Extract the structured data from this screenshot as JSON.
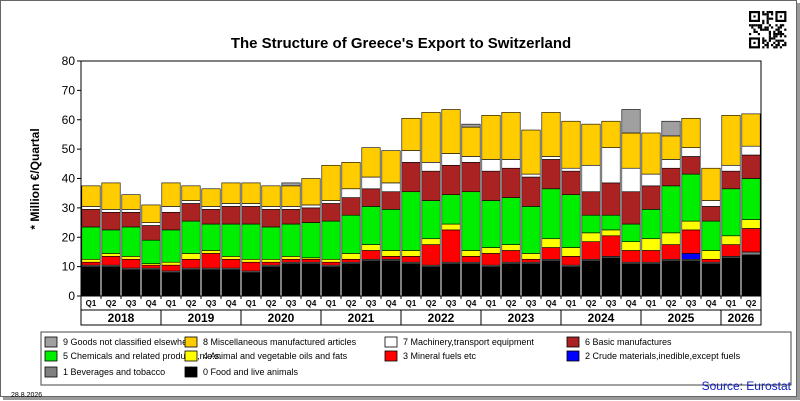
{
  "chart_data": {
    "type": "bar",
    "stacked": true,
    "title": "The Structure of Greece's Export to Switzerland",
    "ylabel": "* Million €/Quartal",
    "ylim": [
      0,
      80
    ],
    "yticks": [
      0,
      10,
      20,
      30,
      40,
      50,
      60,
      70,
      80
    ],
    "grid": false,
    "legend_position": "bottom",
    "quarter_labels": [
      "Q1",
      "Q2",
      "Q3",
      "Q4",
      "Q1",
      "Q2",
      "Q3",
      "Q4",
      "Q1",
      "Q2",
      "Q3",
      "Q4",
      "Q1",
      "Q2",
      "Q3",
      "Q4",
      "Q1",
      "Q2",
      "Q3",
      "Q4",
      "Q1",
      "Q2",
      "Q3",
      "Q4",
      "Q1",
      "Q2",
      "Q3",
      "Q4",
      "Q1",
      "Q2",
      "Q3",
      "Q4",
      "Q1",
      "Q2"
    ],
    "years": [
      "2018",
      "2019",
      "2020",
      "2021",
      "2022",
      "2023",
      "2024",
      "2025",
      "2026"
    ],
    "categories": [
      "2018 Q1",
      "2018 Q2",
      "2018 Q3",
      "2018 Q4",
      "2019 Q1",
      "2019 Q2",
      "2019 Q3",
      "2019 Q4",
      "2020 Q1",
      "2020 Q2",
      "2020 Q3",
      "2020 Q4",
      "2021 Q1",
      "2021 Q2",
      "2021 Q3",
      "2021 Q4",
      "2022 Q1",
      "2022 Q2",
      "2022 Q3",
      "2022 Q4",
      "2023 Q1",
      "2023 Q2",
      "2023 Q3",
      "2023 Q4",
      "2024 Q1",
      "2024 Q2",
      "2024 Q3",
      "2024 Q4",
      "2025 Q1",
      "2025 Q2",
      "2025 Q3",
      "2025 Q4",
      "2026 Q1",
      "2026 Q2"
    ],
    "series": [
      {
        "name": "0 Food and live animals",
        "code": "0",
        "color": "#000000",
        "values": [
          10,
          10,
          9,
          9,
          8,
          9,
          9,
          9,
          8,
          10,
          11,
          11,
          10,
          11,
          12,
          12,
          11,
          10,
          11,
          11,
          10,
          11,
          11,
          12,
          10,
          12,
          13,
          11,
          11,
          12,
          12,
          11,
          13,
          14
        ]
      },
      {
        "name": "1 Beverages and tobacco",
        "code": "1",
        "color": "#808080",
        "values": [
          0.5,
          0.5,
          0.5,
          0.5,
          0.5,
          0.5,
          0.5,
          0.5,
          0.5,
          0.5,
          0.5,
          0.5,
          0.5,
          0.5,
          0.5,
          0.5,
          0.5,
          0.5,
          0.5,
          0.5,
          0.5,
          0.5,
          0.5,
          0.5,
          0.5,
          0.5,
          0.5,
          0.5,
          0.5,
          0.5,
          0.5,
          0.5,
          0.5,
          1
        ]
      },
      {
        "name": "2 Crude materials,inedible,except fuels",
        "code": "2",
        "color": "#0000ff",
        "values": [
          0,
          0,
          0,
          0,
          0,
          0,
          0,
          0,
          0,
          0,
          0,
          0,
          0,
          0,
          0,
          0,
          0,
          0,
          0,
          0,
          0,
          0,
          0,
          0,
          0,
          0,
          0,
          0,
          0,
          0,
          2,
          0,
          0,
          0
        ]
      },
      {
        "name": "3 Mineral fuels etc",
        "code": "3",
        "color": "#ff0000",
        "values": [
          1,
          3,
          3,
          1,
          2,
          3,
          5,
          3,
          3,
          1,
          1,
          1,
          1,
          1,
          3,
          1,
          2,
          7,
          11,
          2,
          4,
          4,
          1,
          4,
          3,
          6,
          7,
          4,
          4,
          5,
          8,
          1,
          4,
          8
        ]
      },
      {
        "name": "4 Animal and vegetable oils and fats",
        "code": "4",
        "color": "#ffff00",
        "values": [
          1,
          1,
          1,
          0.5,
          1,
          2,
          1,
          1,
          1,
          1,
          1,
          0.5,
          1,
          2,
          2,
          2,
          2,
          2,
          2,
          2,
          2,
          2,
          2,
          3,
          3,
          3,
          2,
          3,
          4,
          4,
          3,
          3,
          3,
          3
        ]
      },
      {
        "name": "5 Chemicals and related products,n.e.s.",
        "code": "5",
        "color": "#00ee00",
        "values": [
          11,
          8,
          10,
          8,
          11,
          11,
          9,
          11,
          12,
          11,
          11,
          12,
          13,
          13,
          13,
          14,
          20,
          13,
          10,
          20,
          16,
          16,
          16,
          17,
          18,
          6,
          5,
          6,
          10,
          16,
          16,
          10,
          16,
          14
        ]
      },
      {
        "name": "6 Basic manufactures",
        "code": "6",
        "color": "#aa2222",
        "values": [
          6,
          6,
          5,
          5,
          6,
          6,
          5,
          6,
          6,
          6,
          5,
          5,
          6,
          6,
          6,
          6,
          10,
          10,
          10,
          10,
          10,
          10,
          10,
          10,
          8,
          8,
          11,
          11,
          8,
          6,
          6,
          5,
          6,
          8
        ]
      },
      {
        "name": "7 Machinery,transport equipment",
        "code": "7",
        "color": "#ffffff",
        "values": [
          1,
          1,
          1,
          1,
          2,
          1,
          1,
          1,
          1,
          1,
          1,
          1,
          1,
          3,
          4,
          3,
          4,
          3,
          4,
          2,
          4,
          3,
          1,
          1,
          1,
          9,
          12,
          8,
          4,
          3,
          3,
          2,
          2,
          3
        ]
      },
      {
        "name": "8 Miscellaneous manufactured articles",
        "code": "8",
        "color": "#ffcc00",
        "values": [
          7,
          9,
          5,
          6,
          8,
          5,
          6,
          7,
          7,
          7,
          7,
          9,
          12,
          9,
          10,
          11,
          11,
          17,
          15,
          10,
          15,
          16,
          15,
          15,
          16,
          14,
          9,
          12,
          14,
          8,
          10,
          11,
          17,
          11
        ]
      },
      {
        "name": "9 Goods not classified elsewhere",
        "code": "9",
        "color": "#a0a0a0",
        "values": [
          0,
          0,
          0,
          0,
          0,
          0,
          0,
          0,
          0,
          0,
          1,
          0,
          0,
          0,
          0,
          0,
          0,
          0,
          0,
          1,
          0,
          0,
          0,
          0,
          0,
          0,
          0,
          8,
          0,
          5,
          0,
          0,
          0,
          0
        ]
      }
    ],
    "legend_order": [
      "9",
      "8",
      "7",
      "6",
      "5",
      "4",
      "3",
      "2",
      "1",
      "0"
    ]
  },
  "footer": {
    "date": "28.8.2026",
    "source": "Source: Eurostat"
  }
}
